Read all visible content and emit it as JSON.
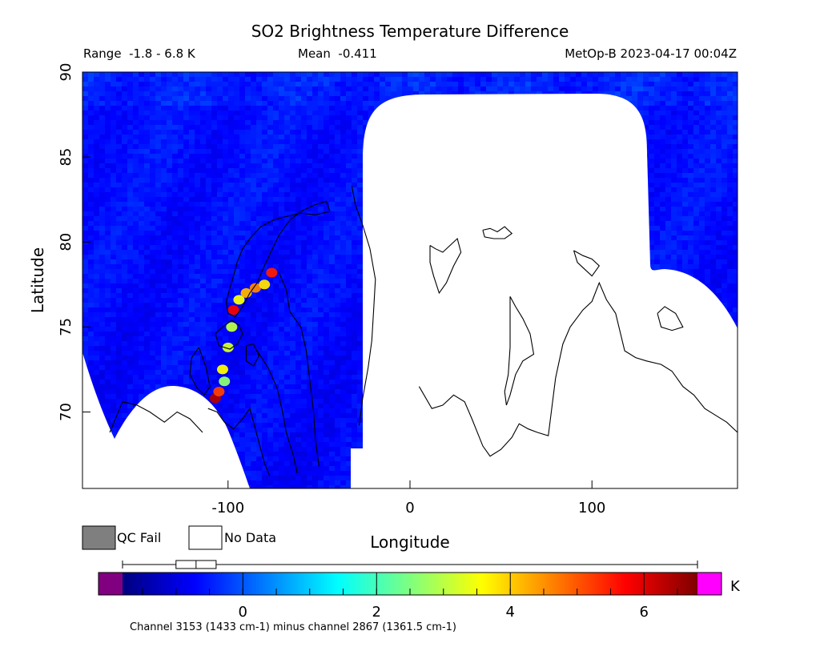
{
  "chart_data": {
    "type": "heatmap",
    "title": "SO2 Brightness Temperature Difference",
    "range_label": "Range  -1.8 - 6.8 K",
    "mean_label": "Mean  -0.411",
    "satellite_label": "MetOp-B 2023-04-17 00:04Z",
    "xlabel": "Longitude",
    "ylabel": "Latitude",
    "xlim": [
      -180,
      180
    ],
    "ylim": [
      65.5,
      90
    ],
    "xticks": [
      -100,
      0,
      100
    ],
    "yticks": [
      70,
      75,
      80,
      85,
      90
    ],
    "grid": false,
    "legend_items": [
      {
        "label": "QC Fail",
        "color": "#7f7f7f"
      },
      {
        "label": "No Data",
        "color": "#ffffff"
      }
    ],
    "colorbar": {
      "min": -1.8,
      "max": 6.8,
      "ticks": [
        0,
        2,
        4,
        6
      ],
      "unit": "K",
      "under_color": "#800080",
      "over_color": "#ff00ff",
      "colors": [
        "#00007f",
        "#0000ff",
        "#007fff",
        "#00ffff",
        "#7fff7f",
        "#ffff00",
        "#ff7f00",
        "#ff0000",
        "#7f0000"
      ]
    },
    "boxplot": {
      "whisker_low": -1.8,
      "q1": -1.0,
      "median": -0.7,
      "q3": -0.4,
      "whisker_high": 6.8
    },
    "footnote": "Channel 3153 (1433 cm-1) minus channel 2867 (1361.5 cm-1)",
    "hotspots": [
      {
        "lon": -107,
        "lat": 70.8,
        "value": 6.4
      },
      {
        "lon": -105,
        "lat": 71.2,
        "value": 5.2
      },
      {
        "lon": -103,
        "lat": 72.5,
        "value": 3.6
      },
      {
        "lon": -100,
        "lat": 73.8,
        "value": 3.2
      },
      {
        "lon": -98,
        "lat": 75.0,
        "value": 3.0
      },
      {
        "lon": -97,
        "lat": 76.0,
        "value": 5.8
      },
      {
        "lon": -94,
        "lat": 76.6,
        "value": 3.5
      },
      {
        "lon": -90,
        "lat": 77.0,
        "value": 4.2
      },
      {
        "lon": -85,
        "lat": 77.3,
        "value": 4.6
      },
      {
        "lon": -80,
        "lat": 77.5,
        "value": 3.8
      },
      {
        "lon": -76,
        "lat": 78.2,
        "value": 5.5
      },
      {
        "lon": -102,
        "lat": 71.8,
        "value": 2.6
      }
    ]
  }
}
